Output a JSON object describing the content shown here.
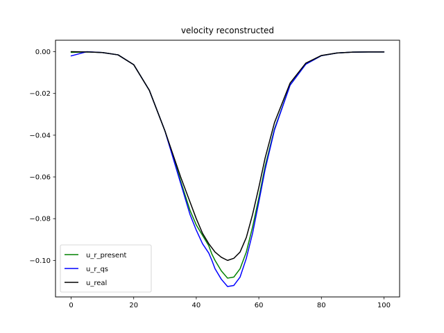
{
  "chart_data": {
    "type": "line",
    "title": "velocity reconstructed",
    "xlabel": "",
    "ylabel": "",
    "xlim": [
      -5,
      105
    ],
    "ylim": [
      -0.1175,
      0.0055
    ],
    "xticks": [
      0,
      20,
      40,
      60,
      80,
      100
    ],
    "xtick_labels": [
      "0",
      "20",
      "40",
      "60",
      "80",
      "100"
    ],
    "yticks": [
      0.0,
      -0.02,
      -0.04,
      -0.06,
      -0.08,
      -0.1
    ],
    "ytick_labels": [
      "0.00",
      "−0.02",
      "−0.04",
      "−0.06",
      "−0.08",
      "−0.10"
    ],
    "grid": false,
    "legend": "lower-left",
    "x": [
      0,
      5,
      10,
      15,
      20,
      25,
      30,
      35,
      38,
      40,
      42,
      44,
      45,
      46,
      48,
      50,
      52,
      54,
      56,
      58,
      60,
      62,
      65,
      70,
      75,
      80,
      85,
      90,
      95,
      100
    ],
    "series": [
      {
        "name": "u_r_present",
        "color": "#008000",
        "values": [
          -0.0003,
          -0.0001,
          -0.0004,
          -0.0015,
          -0.0062,
          -0.0185,
          -0.038,
          -0.062,
          -0.076,
          -0.083,
          -0.088,
          -0.093,
          -0.097,
          -0.1,
          -0.105,
          -0.1085,
          -0.108,
          -0.104,
          -0.096,
          -0.084,
          -0.07,
          -0.055,
          -0.037,
          -0.016,
          -0.006,
          -0.0019,
          -0.0006,
          -0.0002,
          -0.0001,
          -0.0001
        ]
      },
      {
        "name": "u_r_qs",
        "color": "#0000ff",
        "values": [
          -0.002,
          0.0,
          -0.0004,
          -0.0015,
          -0.0062,
          -0.0185,
          -0.038,
          -0.063,
          -0.078,
          -0.0855,
          -0.092,
          -0.0965,
          -0.1,
          -0.104,
          -0.109,
          -0.1125,
          -0.112,
          -0.108,
          -0.099,
          -0.087,
          -0.072,
          -0.0565,
          -0.0375,
          -0.016,
          -0.006,
          -0.0019,
          -0.0006,
          -0.0002,
          -0.0001,
          -0.0001
        ]
      },
      {
        "name": "u_real",
        "color": "#000000",
        "values": [
          0.0,
          -0.0001,
          -0.0004,
          -0.0015,
          -0.0062,
          -0.0185,
          -0.038,
          -0.06,
          -0.072,
          -0.08,
          -0.087,
          -0.092,
          -0.094,
          -0.096,
          -0.0985,
          -0.1,
          -0.099,
          -0.096,
          -0.089,
          -0.078,
          -0.065,
          -0.051,
          -0.034,
          -0.015,
          -0.0055,
          -0.0018,
          -0.0006,
          -0.0002,
          -0.0001,
          -0.0001
        ]
      }
    ]
  }
}
